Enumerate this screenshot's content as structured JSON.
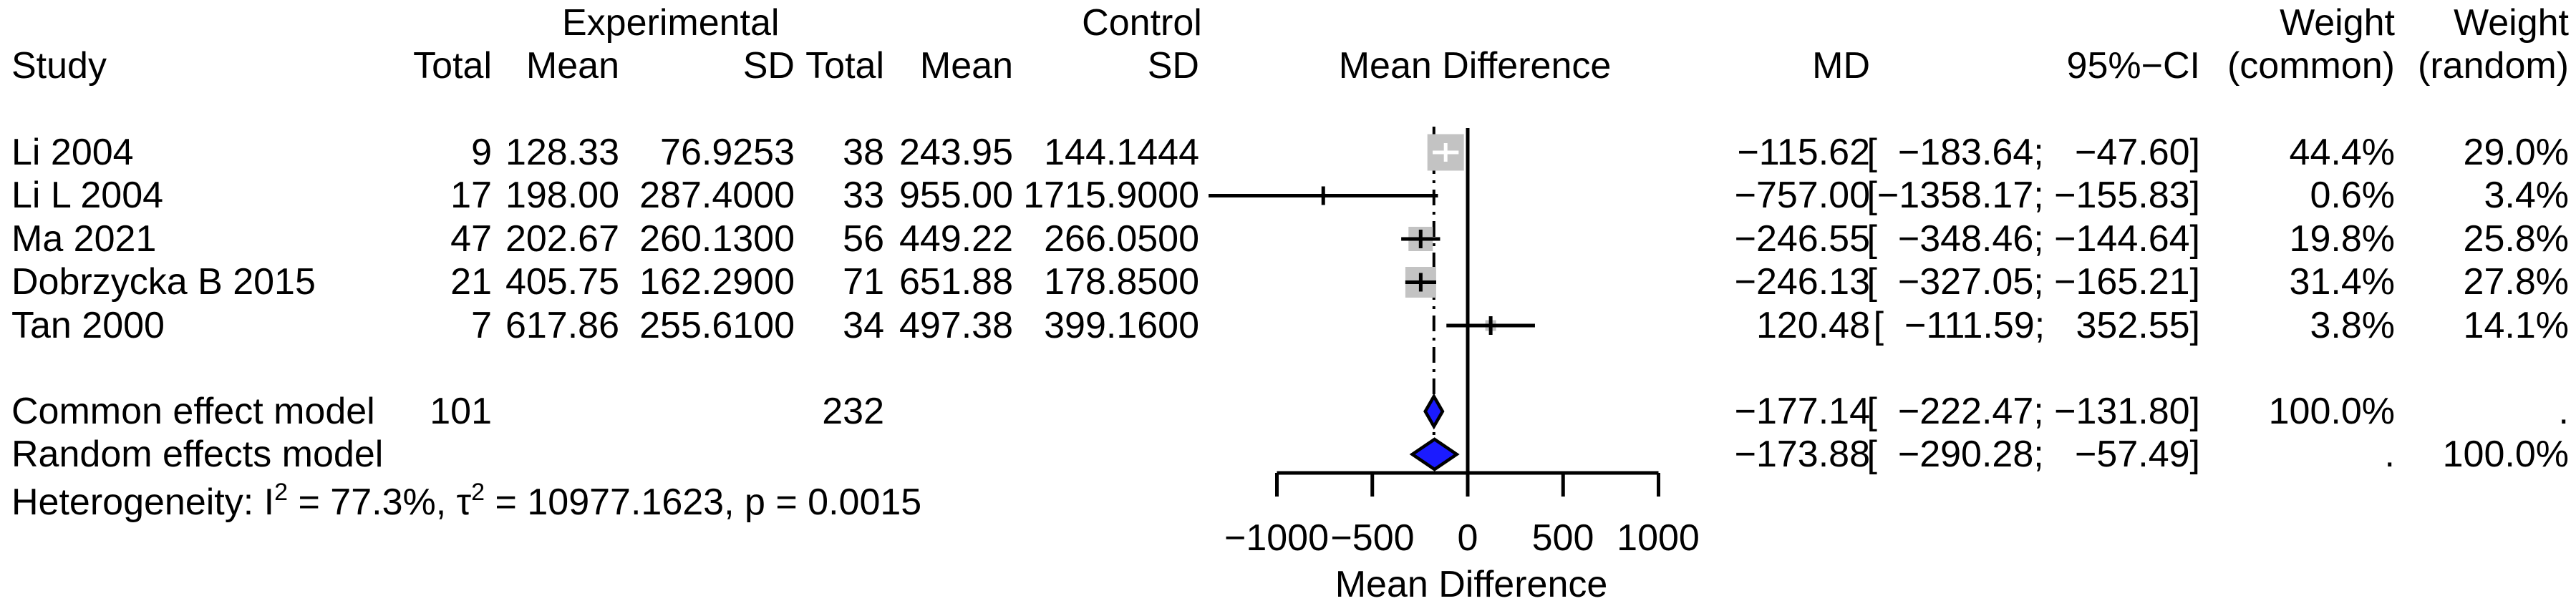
{
  "colors": {
    "square_fill": "#c3c3c3",
    "diamond_fill": "#1b1bff",
    "line": "#000000",
    "background": "#ffffff"
  },
  "header": {
    "group_experimental": "Experimental",
    "group_control": "Control",
    "study": "Study",
    "exp_total": "Total",
    "exp_mean": "Mean",
    "exp_sd": "SD",
    "ctrl_total": "Total",
    "ctrl_mean": "Mean",
    "ctrl_sd": "SD",
    "mean_difference": "Mean Difference",
    "md": "MD",
    "ci": "95%−CI",
    "weight_common_line1": "Weight",
    "weight_random_line1": "Weight",
    "weight_common_line2": "(common)",
    "weight_random_line2": "(random)"
  },
  "chart_data": {
    "type": "forest",
    "xlabel": "Mean Difference",
    "xlim": [
      -1000,
      1000
    ],
    "x_ticks": [
      -1000,
      -500,
      0,
      500,
      1000
    ],
    "x_tick_labels": [
      "−1000",
      "−500",
      "0",
      "500",
      "1000"
    ],
    "null_reference_line": 0,
    "overall_effect_line_md": -177.14,
    "studies": [
      {
        "study": "Li 2004",
        "exp_total": "9",
        "exp_mean": "128.33",
        "exp_sd": "76.9253",
        "ctrl_total": "38",
        "ctrl_mean": "243.95",
        "ctrl_sd": "144.1444",
        "md": -115.62,
        "ci_low": -183.64,
        "ci_high": -47.6,
        "md_label": "−115.62",
        "ci_label": "[  −183.64;   −47.60]",
        "weight_common": "44.4%",
        "weight_random": "29.0%",
        "weight_common_frac": 0.444
      },
      {
        "study": "Li L 2004",
        "exp_total": "17",
        "exp_mean": "198.00",
        "exp_sd": "287.4000",
        "ctrl_total": "33",
        "ctrl_mean": "955.00",
        "ctrl_sd": "1715.9000",
        "md": -757.0,
        "ci_low": -1358.17,
        "ci_high": -155.83,
        "md_label": "−757.00",
        "ci_label": "[−1358.17; −155.83]",
        "weight_common": "0.6%",
        "weight_random": "3.4%",
        "weight_common_frac": 0.006
      },
      {
        "study": "Ma 2021",
        "exp_total": "47",
        "exp_mean": "202.67",
        "exp_sd": "260.1300",
        "ctrl_total": "56",
        "ctrl_mean": "449.22",
        "ctrl_sd": "266.0500",
        "md": -246.55,
        "ci_low": -348.46,
        "ci_high": -144.64,
        "md_label": "−246.55",
        "ci_label": "[  −348.46; −144.64]",
        "weight_common": "19.8%",
        "weight_random": "25.8%",
        "weight_common_frac": 0.198
      },
      {
        "study": "Dobrzycka B 2015",
        "exp_total": "21",
        "exp_mean": "405.75",
        "exp_sd": "162.2900",
        "ctrl_total": "71",
        "ctrl_mean": "651.88",
        "ctrl_sd": "178.8500",
        "md": -246.13,
        "ci_low": -327.05,
        "ci_high": -165.21,
        "md_label": "−246.13",
        "ci_label": "[  −327.05; −165.21]",
        "weight_common": "31.4%",
        "weight_random": "27.8%",
        "weight_common_frac": 0.314
      },
      {
        "study": "Tan 2000",
        "exp_total": "7",
        "exp_mean": "617.86",
        "exp_sd": "255.6100",
        "ctrl_total": "34",
        "ctrl_mean": "497.38",
        "ctrl_sd": "399.1600",
        "md": 120.48,
        "ci_low": -111.59,
        "ci_high": 352.55,
        "md_label": "120.48",
        "ci_label": "[  −111.59;   352.55]",
        "weight_common": "3.8%",
        "weight_random": "14.1%",
        "weight_common_frac": 0.038
      }
    ],
    "summaries": [
      {
        "label": "Common effect model",
        "exp_total": "101",
        "ctrl_total": "232",
        "md": -177.14,
        "ci_low": -222.47,
        "ci_high": -131.8,
        "md_label": "−177.14",
        "ci_label": "[  −222.47; −131.80]",
        "weight_common": "100.0%",
        "weight_random": "."
      },
      {
        "label": "Random effects model",
        "exp_total": "",
        "ctrl_total": "",
        "md": -173.88,
        "ci_low": -290.28,
        "ci_high": -57.49,
        "md_label": "−173.88",
        "ci_label": "[  −290.28;   −57.49]",
        "weight_common": ".",
        "weight_random": "100.0%"
      }
    ],
    "heterogeneity": {
      "part1": "Heterogeneity: I",
      "sup1": "2",
      "part2": " = 77.3%, τ",
      "sup2": "2",
      "part3": " = 10977.1623, p = 0.0015",
      "i_squared": "77.3%",
      "tau_squared": "10977.1623",
      "p_value": "0.0015"
    }
  }
}
